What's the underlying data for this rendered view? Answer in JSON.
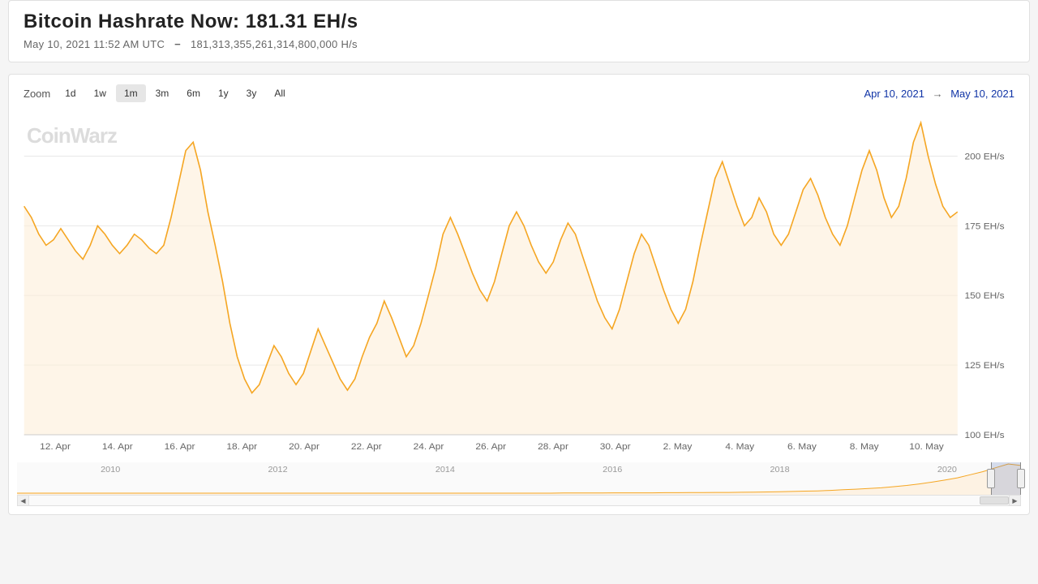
{
  "header": {
    "title": "Bitcoin Hashrate Now: 181.31 EH/s",
    "timestamp": "May 10, 2021 11:52 AM UTC",
    "value": "181,313,355,261,314,800,000 H/s"
  },
  "watermark": "CoinWarz",
  "zoom": {
    "label": "Zoom",
    "buttons": [
      "1d",
      "1w",
      "1m",
      "3m",
      "6m",
      "1y",
      "3y",
      "All"
    ],
    "active": "1m"
  },
  "date_range": {
    "from": "Apr 10, 2021",
    "to": "May 10, 2021"
  },
  "chart": {
    "type": "area",
    "line_color": "#f5a623",
    "area_color": "#fdeed9",
    "area_opacity": 0.6,
    "background": "#ffffff",
    "grid_color": "#e8e8e8",
    "axis_color": "#cccccc",
    "y_label_color": "#666666",
    "x_label_color": "#666666",
    "label_fontsize": 11,
    "ylim": [
      100,
      215
    ],
    "yticks": [
      {
        "v": 100,
        "label": "100 EH/s"
      },
      {
        "v": 125,
        "label": "125 EH/s"
      },
      {
        "v": 150,
        "label": "150 EH/s"
      },
      {
        "v": 175,
        "label": "175 EH/s"
      },
      {
        "v": 200,
        "label": "200 EH/s"
      }
    ],
    "xticks": [
      "12. Apr",
      "14. Apr",
      "16. Apr",
      "18. Apr",
      "20. Apr",
      "22. Apr",
      "24. Apr",
      "26. Apr",
      "28. Apr",
      "30. Apr",
      "2. May",
      "4. May",
      "6. May",
      "8. May",
      "10. May"
    ],
    "data": [
      182,
      178,
      172,
      168,
      170,
      174,
      170,
      166,
      163,
      168,
      175,
      172,
      168,
      165,
      168,
      172,
      170,
      167,
      165,
      168,
      178,
      190,
      202,
      205,
      195,
      180,
      168,
      155,
      140,
      128,
      120,
      115,
      118,
      125,
      132,
      128,
      122,
      118,
      122,
      130,
      138,
      132,
      126,
      120,
      116,
      120,
      128,
      135,
      140,
      148,
      142,
      135,
      128,
      132,
      140,
      150,
      160,
      172,
      178,
      172,
      165,
      158,
      152,
      148,
      155,
      165,
      175,
      180,
      175,
      168,
      162,
      158,
      162,
      170,
      176,
      172,
      164,
      156,
      148,
      142,
      138,
      145,
      155,
      165,
      172,
      168,
      160,
      152,
      145,
      140,
      145,
      155,
      168,
      180,
      192,
      198,
      190,
      182,
      175,
      178,
      185,
      180,
      172,
      168,
      172,
      180,
      188,
      192,
      186,
      178,
      172,
      168,
      175,
      185,
      195,
      202,
      195,
      185,
      178,
      182,
      192,
      205,
      212,
      200,
      190,
      182,
      178,
      180
    ]
  },
  "navigator": {
    "years": [
      "2010",
      "2012",
      "2014",
      "2016",
      "2018",
      "2020"
    ],
    "line_color": "#f5a623",
    "bg_color": "#fafafa",
    "mask_color": "rgba(102,133,194,0.25)",
    "selected_start_pct": 97,
    "selected_end_pct": 100,
    "data": [
      0,
      0,
      0,
      0,
      0,
      0,
      0,
      0,
      0,
      0,
      0,
      0,
      0,
      0,
      0,
      0,
      0,
      0,
      0,
      0,
      0,
      0,
      0,
      0,
      0,
      0,
      0,
      0,
      0,
      0,
      0,
      0,
      0,
      0,
      0,
      0,
      0,
      0,
      0,
      0,
      0,
      0,
      0,
      1,
      1,
      1,
      1,
      2,
      2,
      2,
      2,
      3,
      3,
      4,
      4,
      5,
      5,
      6,
      7,
      8,
      9,
      11,
      13,
      15,
      18,
      22,
      26,
      30,
      35,
      42,
      50,
      60,
      72,
      85,
      100,
      120,
      140,
      165,
      190,
      180
    ]
  },
  "scrollbar": {
    "thumb_left_pct": 97,
    "thumb_width_pct": 3
  }
}
